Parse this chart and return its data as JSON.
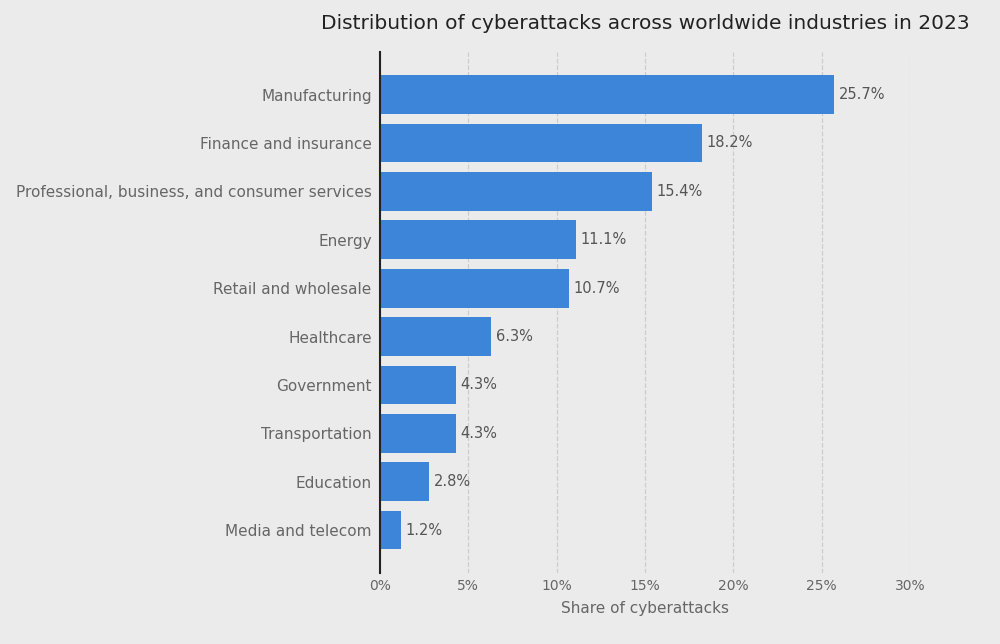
{
  "title": "Distribution of cyberattacks across worldwide industries in 2023",
  "categories": [
    "Media and telecom",
    "Education",
    "Transportation",
    "Government",
    "Healthcare",
    "Retail and wholesale",
    "Energy",
    "Professional, business, and consumer services",
    "Finance and insurance",
    "Manufacturing"
  ],
  "values": [
    1.2,
    2.8,
    4.3,
    4.3,
    6.3,
    10.7,
    11.1,
    15.4,
    18.2,
    25.7
  ],
  "bar_color": "#3d85d8",
  "background_color": "#ebebeb",
  "plot_bg_color": "#ebebeb",
  "xlabel": "Share of cyberattacks",
  "xlim": [
    0,
    30
  ],
  "xticks": [
    0,
    5,
    10,
    15,
    20,
    25,
    30
  ],
  "xtick_labels": [
    "0%",
    "5%",
    "10%",
    "15%",
    "20%",
    "25%",
    "30%"
  ],
  "title_fontsize": 14.5,
  "label_fontsize": 11,
  "tick_fontsize": 10,
  "xlabel_fontsize": 11,
  "annotation_fontsize": 10.5,
  "bar_height": 0.8,
  "annotation_color": "#555555",
  "spine_color": "#222222",
  "grid_color": "#cccccc",
  "tick_color": "#666666",
  "title_color": "#222222"
}
